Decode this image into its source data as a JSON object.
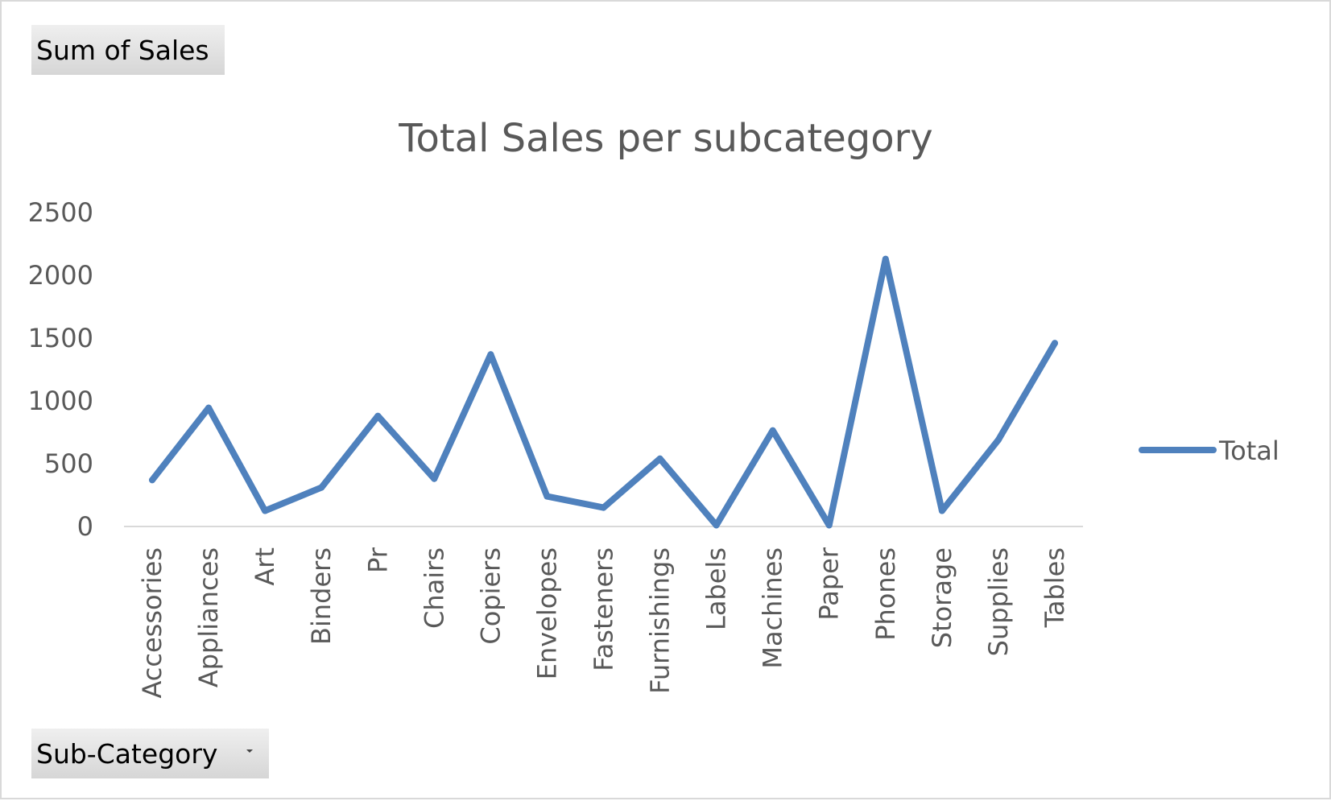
{
  "pivot": {
    "value_field": "Sum of Sales",
    "axis_field": "Sub-Category"
  },
  "chart_data": {
    "type": "line",
    "title": "Total Sales per subcategory",
    "xlabel": "",
    "ylabel": "",
    "categories": [
      "Accessories",
      "Appliances",
      "Art",
      "Binders",
      "Pr",
      "Chairs",
      "Copiers",
      "Envelopes",
      "Fasteners",
      "Furnishings",
      "Labels",
      "Machines",
      "Paper",
      "Phones",
      "Storage",
      "Supplies",
      "Tables"
    ],
    "series": [
      {
        "name": "Total",
        "color": "#4f81bd",
        "values": [
          370,
          945,
          125,
          310,
          880,
          380,
          1370,
          240,
          150,
          540,
          10,
          765,
          10,
          2130,
          125,
          690,
          1460
        ]
      }
    ],
    "y_ticks": [
      0,
      500,
      1000,
      1500,
      2000,
      2500
    ],
    "ylim": [
      0,
      2500
    ],
    "grid": false,
    "legend_position": "right"
  }
}
